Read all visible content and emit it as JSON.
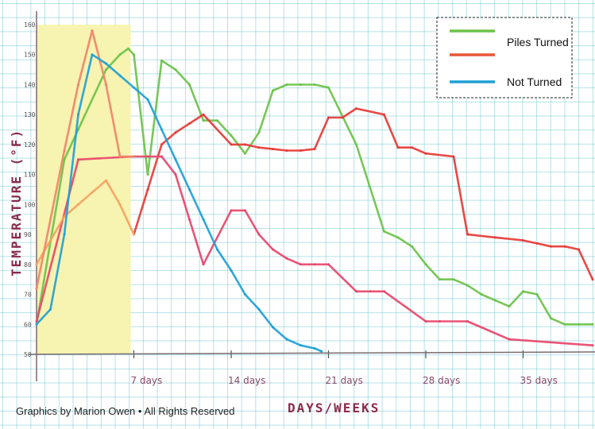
{
  "chart_data": {
    "type": "line",
    "title": "",
    "xlabel": "DAYS/WEEKS",
    "ylabel": "TEMPERATURE (°F)",
    "xlim": [
      0,
      40
    ],
    "ylim": [
      50,
      160
    ],
    "yticks": [
      50,
      60,
      70,
      80,
      90,
      100,
      110,
      120,
      130,
      140,
      150,
      160
    ],
    "xticks": [
      {
        "value": 7,
        "label": "7 days"
      },
      {
        "value": 14,
        "label": "14 days"
      },
      {
        "value": 21,
        "label": "21 days"
      },
      {
        "value": 28,
        "label": "28 days"
      },
      {
        "value": 35,
        "label": "35 days"
      }
    ],
    "highlight": {
      "from": 0,
      "to": 7,
      "color": "#f7f3b0"
    },
    "legend": {
      "entries": [
        {
          "label": "Piles Turned",
          "colors": [
            "#6cc24a",
            "#e8553a"
          ]
        },
        {
          "label": "Not Turned",
          "colors": [
            "#1e9fd6"
          ]
        }
      ]
    },
    "series": [
      {
        "name": "Turned pile (green)",
        "color": "#6cc24a",
        "x": [
          0,
          2,
          3,
          5,
          6,
          6.6,
          7,
          8,
          9,
          10,
          11,
          12,
          13,
          14,
          15,
          16,
          17,
          18,
          19,
          20,
          21,
          23,
          25,
          26,
          27,
          28,
          29,
          30,
          31,
          32,
          33,
          34,
          35,
          36,
          37,
          38,
          39,
          40
        ],
        "y": [
          60,
          115,
          125,
          145,
          150,
          152,
          150,
          110,
          148,
          145,
          140,
          128,
          128,
          123,
          117,
          124,
          138,
          140,
          140,
          140,
          139,
          120,
          91,
          89,
          86,
          80,
          75,
          75,
          73,
          70,
          68,
          66,
          71,
          70,
          62,
          60,
          60,
          60
        ]
      },
      {
        "name": "Turned pile (red)",
        "color": "#e63a35",
        "x": [
          7,
          8,
          9,
          10,
          11,
          12,
          14,
          15,
          16,
          17,
          18,
          19,
          20,
          21,
          22,
          23,
          25,
          26,
          27,
          28,
          30,
          31,
          33,
          35,
          36,
          37,
          38,
          39,
          40
        ],
        "y": [
          90,
          105,
          120,
          124,
          127,
          130,
          120,
          120,
          119,
          118.5,
          118,
          118,
          118.5,
          129,
          129,
          132,
          130,
          119,
          119,
          117,
          116,
          90,
          89,
          88,
          87,
          86,
          86,
          85,
          75
        ]
      },
      {
        "name": "Turned pile (pink)",
        "color": "#e8456a",
        "x": [
          0,
          3,
          7,
          8,
          9,
          10,
          11,
          12,
          14,
          15,
          16,
          17,
          18,
          19,
          20,
          21,
          23,
          24,
          25,
          28,
          29,
          31,
          34,
          40
        ],
        "y": [
          61,
          115,
          116,
          116,
          116,
          110,
          95,
          80,
          98,
          98,
          90,
          85,
          82,
          80,
          80,
          80,
          71,
          71,
          71,
          61,
          61,
          61,
          55,
          53
        ]
      },
      {
        "name": "Turned pile (orange)",
        "color": "#f4a263",
        "x": [
          0,
          2,
          3,
          4,
          5,
          6,
          7
        ],
        "y": [
          80,
          96,
          100,
          104,
          108,
          100,
          90
        ]
      },
      {
        "name": "Turned pile (salmon)",
        "color": "#f0836a",
        "x": [
          0,
          2,
          3,
          4,
          5,
          6,
          7
        ],
        "y": [
          72,
          118,
          140,
          158,
          140,
          116,
          116
        ]
      },
      {
        "name": "Not turned (blue)",
        "color": "#1e9fd6",
        "x": [
          0,
          1,
          2,
          3,
          4,
          5,
          6,
          7,
          8,
          9,
          10,
          11,
          12,
          13,
          14,
          15,
          16,
          17,
          18,
          19,
          20,
          20.5
        ],
        "y": [
          60,
          65,
          90,
          130,
          150,
          147,
          143,
          139,
          135,
          125,
          115,
          105,
          95,
          85,
          78,
          70,
          65,
          59,
          55,
          53,
          52,
          51
        ]
      }
    ]
  },
  "credit": "Graphics by Marion Owen • All Rights Reserved"
}
